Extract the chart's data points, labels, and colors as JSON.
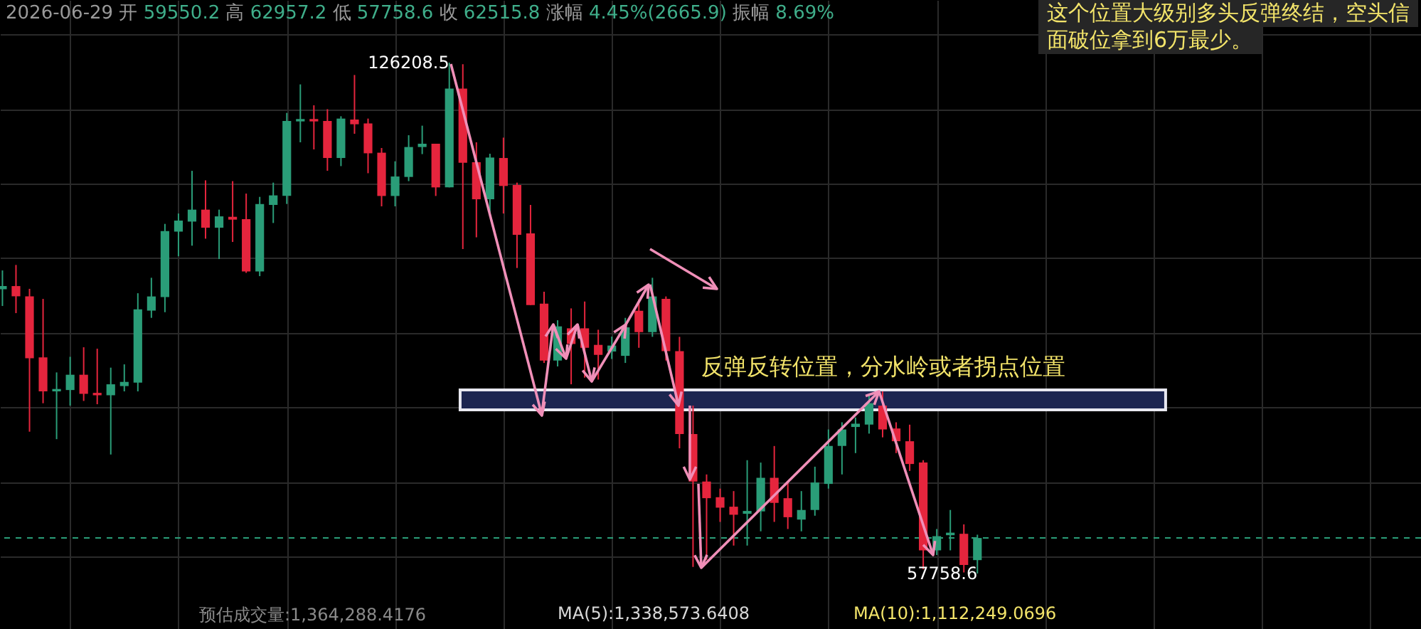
{
  "chart_data": {
    "type": "candlestick",
    "categories": [
      null,
      null,
      null,
      null,
      null,
      null,
      null,
      null,
      null,
      null,
      null,
      null,
      null,
      null,
      null,
      null,
      null,
      null,
      null,
      null,
      null,
      null,
      null,
      null,
      null,
      null,
      null,
      null,
      null,
      null,
      null,
      null,
      null,
      null,
      null,
      null,
      null,
      null,
      null,
      null,
      null,
      null,
      null,
      null,
      null,
      null,
      null,
      null,
      null,
      null,
      null,
      null,
      null,
      null,
      null,
      null,
      null,
      null,
      null,
      null,
      null,
      null,
      null,
      null,
      null,
      null,
      null,
      null,
      null,
      null,
      null,
      null,
      null
    ],
    "ohlc": [
      [
        95840,
        98366,
        93600,
        96268
      ],
      [
        96268,
        99100,
        92645,
        94900
      ],
      [
        94900,
        95900,
        76760,
        86600
      ],
      [
        86720,
        94550,
        80570,
        82160
      ],
      [
        82160,
        84700,
        75760,
        82480
      ],
      [
        82340,
        86790,
        80250,
        84390
      ],
      [
        84390,
        88070,
        80880,
        81830
      ],
      [
        81960,
        87880,
        80440,
        81640
      ],
      [
        81640,
        85340,
        73700,
        83110
      ],
      [
        82870,
        85780,
        82160,
        83430
      ],
      [
        83340,
        95310,
        82160,
        93160
      ],
      [
        92980,
        97380,
        92010,
        94880
      ],
      [
        94800,
        104600,
        92770,
        103640
      ],
      [
        103570,
        105990,
        100270,
        105040
      ],
      [
        104910,
        111710,
        101680,
        106510
      ],
      [
        106510,
        110440,
        102620,
        104090
      ],
      [
        104090,
        106510,
        99890,
        105610
      ],
      [
        105550,
        110330,
        102180,
        105170
      ],
      [
        105230,
        108660,
        98040,
        98230
      ],
      [
        98230,
        108220,
        97600,
        107270
      ],
      [
        107140,
        110130,
        104720,
        108420
      ],
      [
        108360,
        119470,
        107270,
        118390
      ],
      [
        118330,
        123290,
        115530,
        118650
      ],
      [
        118650,
        120490,
        114580,
        118330
      ],
      [
        118390,
        119970,
        111720,
        113430
      ],
      [
        113430,
        119020,
        112340,
        118710
      ],
      [
        118580,
        124550,
        116670,
        117950
      ],
      [
        118060,
        118710,
        111390,
        114060
      ],
      [
        114140,
        114770,
        106950,
        108340
      ],
      [
        108340,
        112990,
        106950,
        110950
      ],
      [
        110890,
        116480,
        110330,
        114900
      ],
      [
        114900,
        117760,
        113950,
        115340
      ],
      [
        115340,
        115340,
        108340,
        109490
      ],
      [
        109490,
        126208.5,
        109490,
        122720
      ],
      [
        122720,
        126000,
        101230,
        112800
      ],
      [
        112860,
        115530,
        102800,
        107900
      ],
      [
        107900,
        114000,
        105990,
        113490
      ],
      [
        113430,
        116160,
        105990,
        109680
      ],
      [
        109810,
        110130,
        98690,
        103130
      ],
      [
        103320,
        107140,
        93730,
        93730
      ],
      [
        93920,
        95510,
        85970,
        86290
      ],
      [
        86290,
        91690,
        85500,
        90870
      ],
      [
        90610,
        93280,
        83110,
        88510
      ],
      [
        90610,
        94200,
        84000,
        88000
      ],
      [
        88390,
        90420,
        83740,
        87050
      ],
      [
        87500,
        89500,
        86500,
        88300
      ],
      [
        86920,
        92010,
        85970,
        90740
      ],
      [
        92960,
        94500,
        88000,
        90100
      ],
      [
        90100,
        97380,
        89470,
        94880
      ],
      [
        94550,
        94880,
        86290,
        87560
      ],
      [
        87560,
        89470,
        74530,
        76440
      ],
      [
        76440,
        80250,
        58640,
        70080
      ],
      [
        70080,
        71030,
        59590,
        67850
      ],
      [
        67980,
        69130,
        64670,
        66580
      ],
      [
        66710,
        68800,
        61500,
        65630
      ],
      [
        65760,
        72940,
        61500,
        66140
      ],
      [
        66080,
        72620,
        63410,
        70580
      ],
      [
        70580,
        74840,
        64670,
        67220
      ],
      [
        67850,
        70080,
        63720,
        65300
      ],
      [
        64980,
        68800,
        63410,
        66270
      ],
      [
        66270,
        72070,
        65500,
        69950
      ],
      [
        69760,
        77060,
        69130,
        74850
      ],
      [
        74850,
        78020,
        71030,
        77060
      ],
      [
        77390,
        78660,
        73890,
        77830
      ],
      [
        77710,
        81840,
        76500,
        80570
      ],
      [
        80250,
        82160,
        76000,
        77060
      ],
      [
        77190,
        78020,
        73890,
        75480
      ],
      [
        75480,
        77700,
        71500,
        72430
      ],
      [
        72620,
        72940,
        58320,
        60860
      ],
      [
        60860,
        63720,
        60230,
        62760
      ],
      [
        62890,
        66270,
        60860,
        63230
      ],
      [
        63080,
        64340,
        57900,
        58900
      ],
      [
        59550.2,
        62957.2,
        57758.6,
        62515.8
      ]
    ],
    "colors": [
      "#2a9d78",
      "#e5253d",
      "#e5253d",
      "#e5253d",
      "#2a9d78",
      "#2a9d78",
      "#e5253d",
      "#e5253d",
      "#2a9d78",
      "#2a9d78",
      "#2a9d78",
      "#2a9d78",
      "#2a9d78",
      "#2a9d78",
      "#2a9d78",
      "#e5253d",
      "#2a9d78",
      "#e5253d",
      "#e5253d",
      "#2a9d78",
      "#2a9d78",
      "#2a9d78",
      "#2a9d78",
      "#e5253d",
      "#e5253d",
      "#2a9d78",
      "#e5253d",
      "#e5253d",
      "#e5253d",
      "#2a9d78",
      "#2a9d78",
      "#2a9d78",
      "#e5253d",
      "#2a9d78",
      "#e5253d",
      "#e5253d",
      "#2a9d78",
      "#e5253d",
      "#e5253d",
      "#e5253d",
      "#e5253d",
      "#2a9d78",
      "#e5253d",
      "#e5253d",
      "#e5253d",
      "#2a9d78",
      "#2a9d78",
      "#e5253d",
      "#2a9d78",
      "#e5253d",
      "#e5253d",
      "#e5253d",
      "#e5253d",
      "#e5253d",
      "#e5253d",
      "#2a9d78",
      "#2a9d78",
      "#e5253d",
      "#e5253d",
      "#2a9d78",
      "#2a9d78",
      "#2a9d78",
      "#2a9d78",
      "#2a9d78",
      "#2a9d78",
      "#e5253d",
      "#e5253d",
      "#e5253d",
      "#e5253d",
      "#2a9d78",
      "#2a9d78",
      "#e5253d",
      "#2a9d78"
    ],
    "annotations": [
      "2026-06-29 开 59550.2 高 62957.2 低 57758.6 收 62515.8 涨幅 4.45%(2665.9) 振幅 8.69%",
      "这个位置大级别多头反弹终结，空头信",
      "面破位拿到6万最少。",
      "126208.5",
      "57758.6",
      "预估成交量:1,364,288.4176",
      "MA(5):1,338,573.6408",
      "MA(10):1,112,249.0696"
    ],
    "bands": [
      {
        "axis": "y",
        "from": 79680,
        "to": 82350,
        "label": "反弹反转位置，分水岭或者拐点位置",
        "color": "#1c2550"
      }
    ],
    "ref_lines": [
      {
        "axis": "y",
        "value": 62515.8,
        "color": "#2a9d78",
        "line_style": "dashed"
      }
    ],
    "grid": true
  }
}
